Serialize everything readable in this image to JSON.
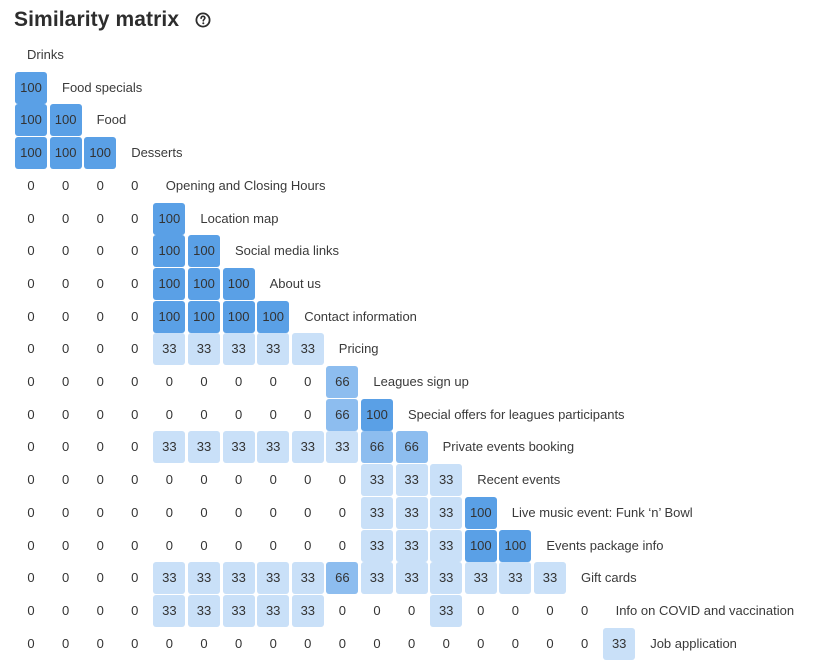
{
  "title": "Similarity matrix",
  "help_icon": "question-circle-icon",
  "colors": {
    "high": "#5aa0e6",
    "mid": "#8dbdef",
    "low": "#c9e0f8",
    "zero": "#ffffff"
  },
  "chart_data": {
    "type": "heatmap",
    "title": "Similarity matrix",
    "labels": [
      "Drinks",
      "Food specials",
      "Food",
      "Desserts",
      "Opening and Closing Hours",
      "Location map",
      "Social media links",
      "About us",
      "Contact information",
      "Pricing",
      "Leagues sign up",
      "Special offers for leagues participants",
      "Private events booking",
      "Recent events",
      "Live music event: Funk ‘n’ Bowl",
      "Events package info",
      "Gift cards",
      "Info on COVID and vaccination",
      "Job application"
    ],
    "rows": [
      [],
      [
        100
      ],
      [
        100,
        100
      ],
      [
        100,
        100,
        100
      ],
      [
        0,
        0,
        0,
        0
      ],
      [
        0,
        0,
        0,
        0,
        100
      ],
      [
        0,
        0,
        0,
        0,
        100,
        100
      ],
      [
        0,
        0,
        0,
        0,
        100,
        100,
        100
      ],
      [
        0,
        0,
        0,
        0,
        100,
        100,
        100,
        100
      ],
      [
        0,
        0,
        0,
        0,
        33,
        33,
        33,
        33,
        33
      ],
      [
        0,
        0,
        0,
        0,
        0,
        0,
        0,
        0,
        0,
        66
      ],
      [
        0,
        0,
        0,
        0,
        0,
        0,
        0,
        0,
        0,
        66,
        100
      ],
      [
        0,
        0,
        0,
        0,
        33,
        33,
        33,
        33,
        33,
        33,
        66,
        66
      ],
      [
        0,
        0,
        0,
        0,
        0,
        0,
        0,
        0,
        0,
        0,
        33,
        33,
        33
      ],
      [
        0,
        0,
        0,
        0,
        0,
        0,
        0,
        0,
        0,
        0,
        33,
        33,
        33,
        100
      ],
      [
        0,
        0,
        0,
        0,
        0,
        0,
        0,
        0,
        0,
        0,
        33,
        33,
        33,
        100,
        100
      ],
      [
        0,
        0,
        0,
        0,
        33,
        33,
        33,
        33,
        33,
        66,
        33,
        33,
        33,
        33,
        33,
        33
      ],
      [
        0,
        0,
        0,
        0,
        33,
        33,
        33,
        33,
        33,
        0,
        0,
        0,
        33,
        0,
        0,
        0,
        0
      ],
      [
        0,
        0,
        0,
        0,
        0,
        0,
        0,
        0,
        0,
        0,
        0,
        0,
        0,
        0,
        0,
        0,
        0,
        33
      ]
    ]
  }
}
